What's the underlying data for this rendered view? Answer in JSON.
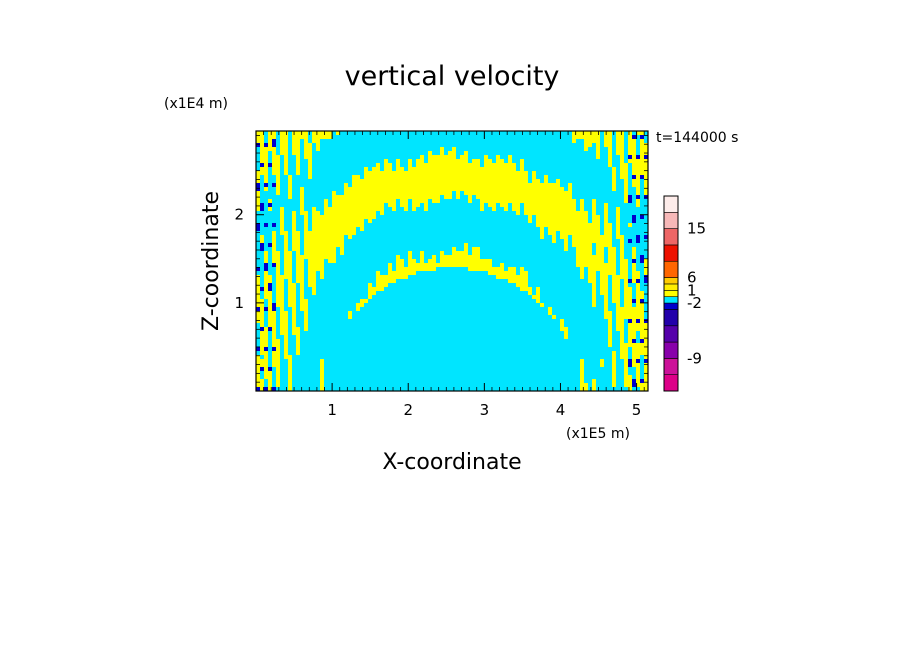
{
  "chart_data": {
    "type": "heatmap",
    "title": "vertical velocity",
    "xlabel": "X-coordinate",
    "ylabel": "Z-coordinate",
    "x_multiplier": "(x1E5 m)",
    "y_multiplier": "(x1E4 m)",
    "time_label": "t=144000 s",
    "xlim": [
      0,
      5.15
    ],
    "ylim": [
      0,
      2.95
    ],
    "x_ticks": [
      {
        "value": 1,
        "label": "1"
      },
      {
        "value": 2,
        "label": "2"
      },
      {
        "value": 3,
        "label": "3"
      },
      {
        "value": 4,
        "label": "4"
      },
      {
        "value": 5,
        "label": "5"
      }
    ],
    "y_ticks": [
      {
        "value": 1,
        "label": "1"
      },
      {
        "value": 2,
        "label": "2"
      }
    ],
    "colorbar": {
      "levels": [
        {
          "color": "#dd0088"
        },
        {
          "color": "#cc1199"
        },
        {
          "color": "#8800aa"
        },
        {
          "color": "#5500aa"
        },
        {
          "color": "#2200aa"
        },
        {
          "color": "#0000cc"
        },
        {
          "color": "#00e5ff"
        },
        {
          "color": "#ffff00"
        },
        {
          "color": "#ffee00"
        },
        {
          "color": "#ffcc00"
        },
        {
          "color": "#ff6600"
        },
        {
          "color": "#ee1100"
        },
        {
          "color": "#ee6666"
        },
        {
          "color": "#f7b8b8"
        },
        {
          "color": "#fdecea"
        }
      ],
      "tick_labels": [
        {
          "level_boundary": 2,
          "label": "-9"
        },
        {
          "level_boundary": 6,
          "label": "-2"
        },
        {
          "level_boundary": 8,
          "label": "1"
        },
        {
          "level_boundary": 10,
          "label": "6"
        },
        {
          "level_boundary": 13,
          "label": "15"
        }
      ]
    },
    "dominant_colors": {
      "positive": "#ffff00",
      "negative": "#00e5ff",
      "strong_negative": "#0000cc"
    }
  }
}
